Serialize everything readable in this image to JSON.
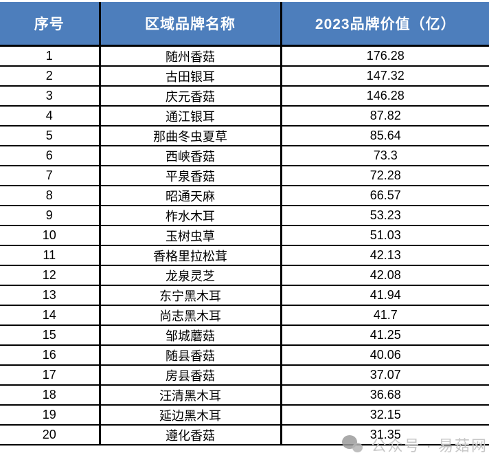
{
  "chart_data": {
    "type": "table",
    "columns": [
      "序号",
      "区域品牌名称",
      "2023品牌价值（亿）"
    ],
    "rows": [
      [
        "1",
        "随州香菇",
        "176.28"
      ],
      [
        "2",
        "古田银耳",
        "147.32"
      ],
      [
        "3",
        "庆元香菇",
        "146.28"
      ],
      [
        "4",
        "通江银耳",
        "87.82"
      ],
      [
        "5",
        "那曲冬虫夏草",
        "85.64"
      ],
      [
        "6",
        "西峡香菇",
        "73.3"
      ],
      [
        "7",
        "平泉香菇",
        "72.28"
      ],
      [
        "8",
        "昭通天麻",
        "66.57"
      ],
      [
        "9",
        "柞水木耳",
        "53.23"
      ],
      [
        "10",
        "玉树虫草",
        "51.03"
      ],
      [
        "11",
        "香格里拉松茸",
        "42.13"
      ],
      [
        "12",
        "龙泉灵芝",
        "42.08"
      ],
      [
        "13",
        "东宁黑木耳",
        "41.94"
      ],
      [
        "14",
        "尚志黑木耳",
        "41.7"
      ],
      [
        "15",
        "邹城蘑菇",
        "41.25"
      ],
      [
        "16",
        "随县香菇",
        "40.06"
      ],
      [
        "17",
        "房县香菇",
        "37.07"
      ],
      [
        "18",
        "汪清黑木耳",
        "36.68"
      ],
      [
        "19",
        "延边黑木耳",
        "32.15"
      ],
      [
        "20",
        "遵化香菇",
        "31.35"
      ]
    ]
  },
  "watermark": {
    "label": "公众号 · 易菇网",
    "icon": "wechat-bubbles-icon"
  },
  "colors": {
    "header_bg": "#4D7EBC",
    "header_text": "#FFFFFF",
    "grid_border": "#000000",
    "row_bg": "#FFFFFF",
    "body_text": "#000000",
    "watermark_text": "#C7C7C7"
  }
}
